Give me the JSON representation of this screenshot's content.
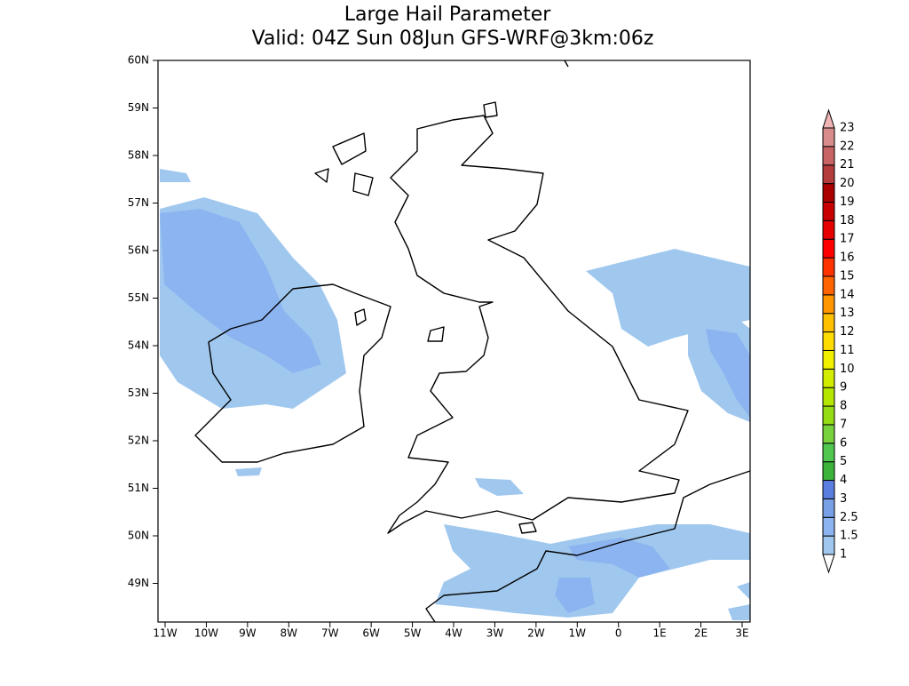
{
  "title": "Large Hail Parameter",
  "subtitle": "Valid: 04Z Sun 08Jun GFS-WRF@3km:06z",
  "lat_labels": [
    "60N",
    "59N",
    "58N",
    "57N",
    "56N",
    "55N",
    "54N",
    "53N",
    "52N",
    "51N",
    "50N",
    "49N"
  ],
  "lon_labels": [
    "11W",
    "10W",
    "9W",
    "8W",
    "7W",
    "6W",
    "5W",
    "4W",
    "3W",
    "2W",
    "1W",
    "0",
    "1E",
    "2E",
    "3E"
  ],
  "colorbar": {
    "levels": [
      1,
      1.5,
      2.5,
      3,
      4,
      5,
      6,
      7,
      8,
      9,
      10,
      11,
      12,
      13,
      14,
      15,
      16,
      17,
      18,
      19,
      20,
      21,
      22,
      23
    ],
    "colors": [
      "#ffffff",
      "#a0c8ee",
      "#8cb4f0",
      "#78a0e6",
      "#5a7ee0",
      "#3cb43c",
      "#50c850",
      "#78d23c",
      "#96dc14",
      "#b4e600",
      "#d2ec00",
      "#f0f000",
      "#ffdc00",
      "#ffc000",
      "#ff9600",
      "#ff6400",
      "#ff3200",
      "#ff0000",
      "#e60000",
      "#c80000",
      "#aa0000",
      "#b43c3c",
      "#c86464",
      "#d88c8c",
      "#f0b4b4"
    ]
  }
}
